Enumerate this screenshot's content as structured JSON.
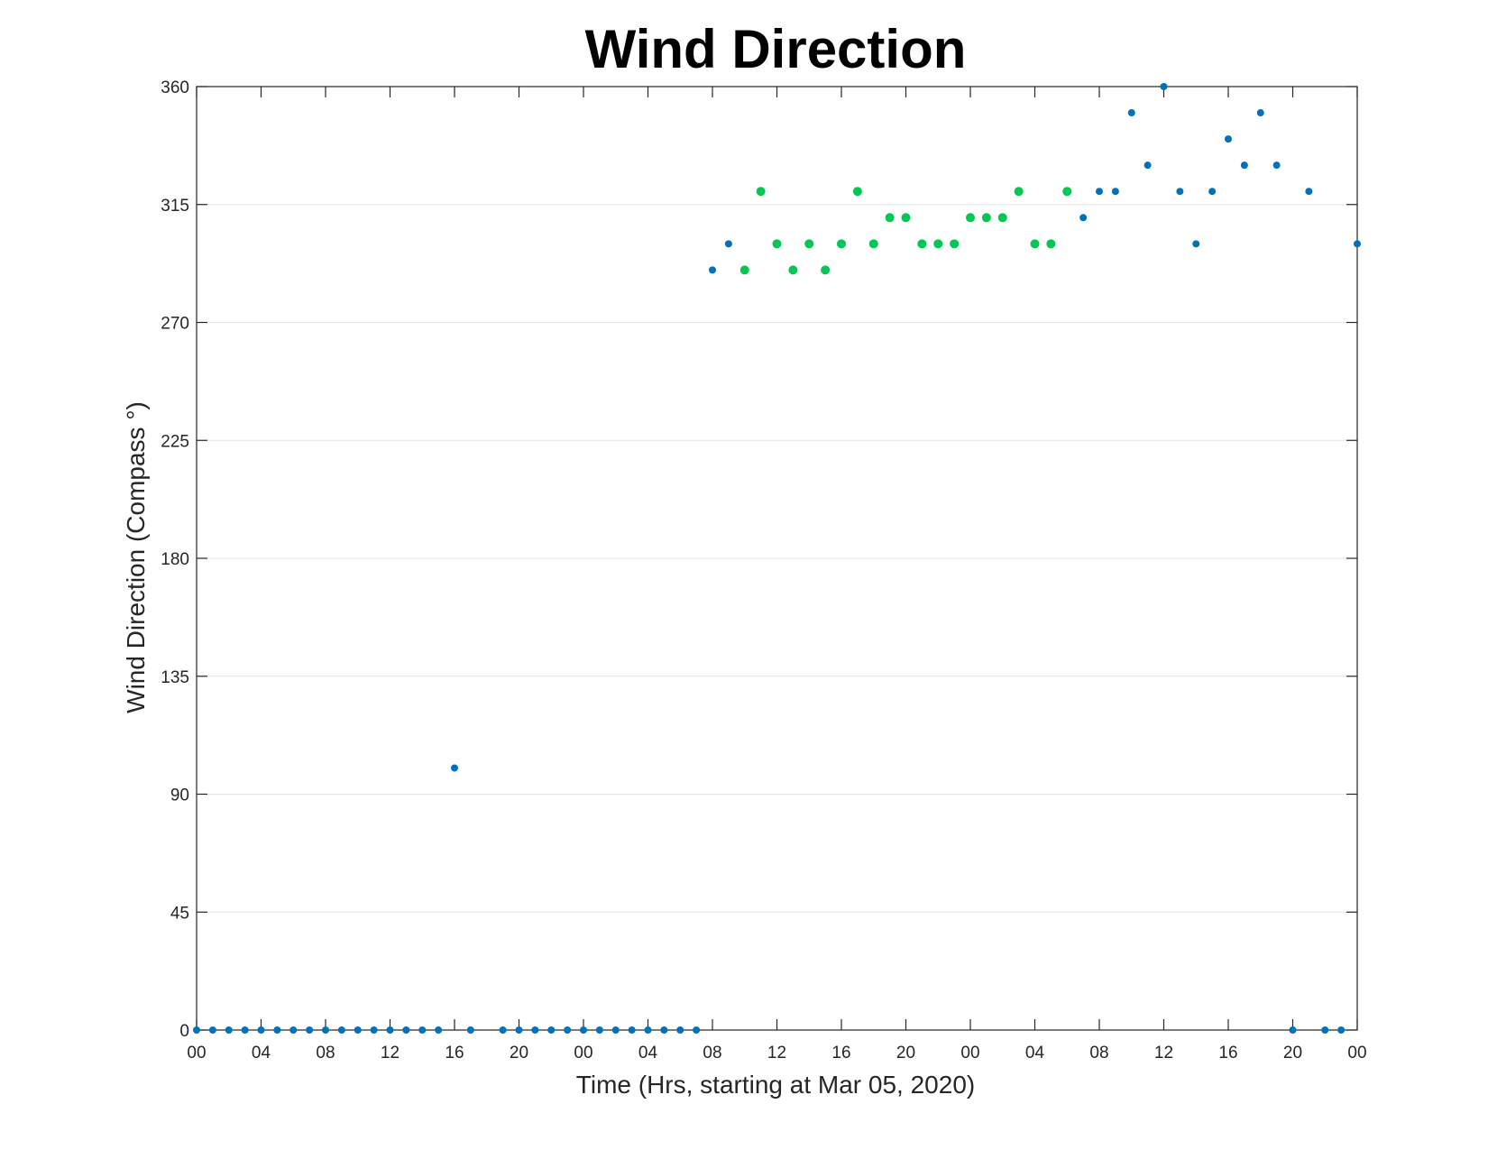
{
  "chart_data": {
    "type": "scatter",
    "title": "Wind Direction",
    "xlabel": "Time (Hrs, starting at Mar 05, 2020)",
    "ylabel": "Wind Direction (Compass °)",
    "xlim": [
      0,
      72
    ],
    "ylim": [
      0,
      360
    ],
    "x_unit": "hours",
    "x_ticks": [
      0,
      4,
      8,
      12,
      16,
      20,
      24,
      28,
      32,
      36,
      40,
      44,
      48,
      52,
      56,
      60,
      64,
      68,
      72
    ],
    "x_tick_labels": [
      "00",
      "04",
      "08",
      "12",
      "16",
      "20",
      "00",
      "04",
      "08",
      "12",
      "16",
      "20",
      "00",
      "04",
      "08",
      "12",
      "16",
      "20",
      "00"
    ],
    "y_ticks": [
      0,
      45,
      90,
      135,
      180,
      225,
      270,
      315,
      360
    ],
    "grid": "horizontal",
    "legend": "none",
    "series": [
      {
        "color": "#0072bd",
        "points": [
          [
            0,
            0
          ],
          [
            1,
            0
          ],
          [
            2,
            0
          ],
          [
            3,
            0
          ],
          [
            4,
            0
          ],
          [
            5,
            0
          ],
          [
            6,
            0
          ],
          [
            7,
            0
          ],
          [
            8,
            0
          ],
          [
            9,
            0
          ],
          [
            10,
            0
          ],
          [
            11,
            0
          ],
          [
            12,
            0
          ],
          [
            13,
            0
          ],
          [
            14,
            0
          ],
          [
            15,
            0
          ],
          [
            16,
            100
          ],
          [
            17,
            0
          ],
          [
            19,
            0
          ],
          [
            20,
            0
          ],
          [
            21,
            0
          ],
          [
            22,
            0
          ],
          [
            23,
            0
          ],
          [
            24,
            0
          ],
          [
            25,
            0
          ],
          [
            26,
            0
          ],
          [
            27,
            0
          ],
          [
            28,
            0
          ],
          [
            29,
            0
          ],
          [
            30,
            0
          ],
          [
            31,
            0
          ],
          [
            32,
            290
          ],
          [
            33,
            300
          ],
          [
            55,
            310
          ],
          [
            56,
            320
          ],
          [
            57,
            320
          ],
          [
            58,
            350
          ],
          [
            59,
            330
          ],
          [
            60,
            360
          ],
          [
            61,
            320
          ],
          [
            62,
            300
          ],
          [
            63,
            320
          ],
          [
            64,
            340
          ],
          [
            65,
            330
          ],
          [
            66,
            350
          ],
          [
            67,
            330
          ],
          [
            68,
            0
          ],
          [
            69,
            320
          ],
          [
            70,
            0
          ],
          [
            71,
            0
          ],
          [
            72,
            300
          ]
        ]
      },
      {
        "color": "#00c853",
        "points": [
          [
            34,
            290
          ],
          [
            35,
            320
          ],
          [
            36,
            300
          ],
          [
            37,
            290
          ],
          [
            38,
            300
          ],
          [
            39,
            290
          ],
          [
            40,
            300
          ],
          [
            41,
            320
          ],
          [
            42,
            300
          ],
          [
            43,
            310
          ],
          [
            44,
            310
          ],
          [
            45,
            300
          ],
          [
            46,
            300
          ],
          [
            47,
            300
          ],
          [
            48,
            310
          ],
          [
            49,
            310
          ],
          [
            50,
            310
          ],
          [
            51,
            320
          ],
          [
            52,
            300
          ],
          [
            53,
            300
          ],
          [
            54,
            320
          ]
        ]
      }
    ]
  }
}
